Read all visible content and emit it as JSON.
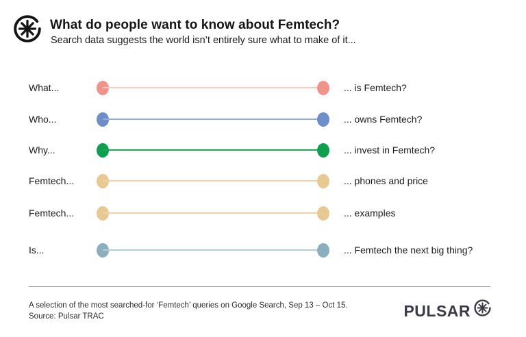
{
  "header": {
    "logo_icon": "pulsar-asterisk-icon",
    "title": "What do people want to know about Femtech?",
    "subtitle": "Search data suggests the world isn’t entirely sure what to make of it..."
  },
  "chart_data": {
    "type": "table",
    "subtype": "dumbbell-query-list",
    "title": "What do people want to know about Femtech?",
    "legend": false,
    "grid": false,
    "rows": [
      {
        "prefix": "What...",
        "suffix": "... is Femtech?",
        "dot_color": "#F0948B",
        "line_color": "#F6C6BF"
      },
      {
        "prefix": "Who...",
        "suffix": "... owns Femtech?",
        "dot_color": "#6D8EC9",
        "line_color": "#95ACDA"
      },
      {
        "prefix": "Why...",
        "suffix": "... invest in Femtech?",
        "dot_color": "#0EA04E",
        "line_color": "#1FA657"
      },
      {
        "prefix": "Femtech...",
        "suffix": "... phones and price",
        "dot_color": "#E9C993",
        "line_color": "#EDD4A8"
      },
      {
        "prefix": "Femtech...",
        "suffix": "... examples",
        "dot_color": "#E9C993",
        "line_color": "#EDD4A8"
      },
      {
        "prefix": "Is...",
        "suffix": "... Femtech the next big thing?",
        "dot_color": "#8CAFC0",
        "line_color": "#B7CDD7"
      }
    ]
  },
  "footer": {
    "caption": "A selection of the most searched-for ‘Femtech’ queries on Google Search, Sep 13 – Oct 15.",
    "source": "Source: Pulsar TRAC",
    "brand": "PULSAR",
    "brand_color": "#3B3B45"
  }
}
